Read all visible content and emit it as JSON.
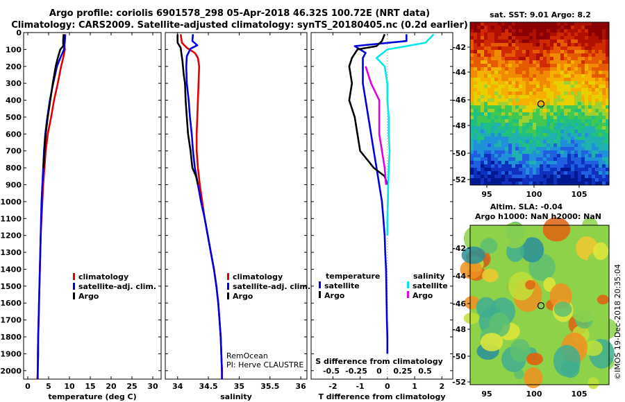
{
  "header": {
    "title_line1": "Argo profile: coriolis 6901578_298 05-Apr-2018 46.32S 100.72E (NRT data)",
    "title_line2": "Climatology: CARS2009. Satellite-adjusted climatology: synTS_20180405.nc (0.2d earlier)"
  },
  "colors": {
    "climatology": "#e00000",
    "satellite": "#0000e0",
    "argo": "#000000",
    "sat_salinity": "#00e8e8",
    "argo_salinity": "#e000e0"
  },
  "depth_ticks": [
    "0",
    "100",
    "200",
    "300",
    "400",
    "500",
    "600",
    "700",
    "800",
    "900",
    "1000",
    "1100",
    "1200",
    "1300",
    "1400",
    "1500",
    "1600",
    "1700",
    "1800",
    "1900",
    "2000"
  ],
  "chart_data": [
    {
      "type": "line",
      "xlabel": "temperature (deg C)",
      "ylabel": "depth",
      "xlim": [
        -1,
        32
      ],
      "ylim": [
        2050,
        0
      ],
      "x_ticks": [
        "0",
        "5",
        "10",
        "15",
        "20",
        "25",
        "30"
      ],
      "legend": [
        "climatology",
        "satellite-adj. clim.",
        "Argo"
      ],
      "series": [
        {
          "name": "climatology",
          "color": "#e00000",
          "points": [
            [
              8.7,
              10
            ],
            [
              8.7,
              50
            ],
            [
              8.9,
              100
            ],
            [
              8.5,
              150
            ],
            [
              8.0,
              200
            ],
            [
              7.2,
              300
            ],
            [
              6.3,
              400
            ],
            [
              5.6,
              500
            ],
            [
              4.8,
              600
            ],
            [
              4.3,
              700
            ],
            [
              4.0,
              800
            ],
            [
              3.7,
              900
            ],
            [
              3.5,
              1000
            ],
            [
              3.3,
              1100
            ],
            [
              3.1,
              1200
            ],
            [
              3.0,
              1300
            ],
            [
              2.9,
              1400
            ],
            [
              2.8,
              1500
            ],
            [
              2.7,
              1600
            ],
            [
              2.6,
              1700
            ],
            [
              2.5,
              1800
            ],
            [
              2.4,
              1900
            ],
            [
              2.4,
              2000
            ],
            [
              2.3,
              2050
            ]
          ]
        },
        {
          "name": "satellite-adj. clim.",
          "color": "#0000e0",
          "points": [
            [
              9.0,
              10
            ],
            [
              8.9,
              50
            ],
            [
              8.7,
              100
            ],
            [
              7.8,
              150
            ],
            [
              7.0,
              200
            ],
            [
              6.1,
              300
            ],
            [
              5.3,
              400
            ],
            [
              4.7,
              500
            ],
            [
              4.2,
              600
            ],
            [
              3.9,
              700
            ],
            [
              3.7,
              800
            ],
            [
              3.5,
              900
            ],
            [
              3.3,
              1000
            ],
            [
              3.2,
              1100
            ],
            [
              3.1,
              1200
            ],
            [
              3.0,
              1300
            ],
            [
              2.9,
              1400
            ],
            [
              2.8,
              1500
            ],
            [
              2.7,
              1600
            ],
            [
              2.6,
              1700
            ],
            [
              2.5,
              1800
            ],
            [
              2.5,
              1900
            ],
            [
              2.4,
              2000
            ],
            [
              2.4,
              2050
            ]
          ]
        },
        {
          "name": "Argo",
          "color": "#000000",
          "points": [
            [
              8.6,
              10
            ],
            [
              8.5,
              50
            ],
            [
              8.5,
              80
            ],
            [
              7.8,
              100
            ],
            [
              7.2,
              150
            ],
            [
              6.7,
              200
            ],
            [
              6.0,
              300
            ],
            [
              5.4,
              400
            ],
            [
              4.8,
              500
            ],
            [
              4.3,
              600
            ],
            [
              4.0,
              700
            ],
            [
              3.8,
              800
            ]
          ]
        }
      ]
    },
    {
      "type": "line",
      "xlabel": "salinity",
      "ylabel": "depth",
      "xlim": [
        33.8,
        36.1
      ],
      "ylim": [
        2050,
        0
      ],
      "x_ticks": [
        "34",
        "34.5",
        "35",
        "35.5",
        "36"
      ],
      "legend": [
        "climatology",
        "satellite-adj. clim.",
        "Argo"
      ],
      "annotation": [
        "RemOcean",
        "PI: Herve CLAUSTRE"
      ],
      "series": [
        {
          "name": "climatology",
          "color": "#e00000",
          "points": [
            [
              34.05,
              10
            ],
            [
              34.07,
              60
            ],
            [
              34.15,
              90
            ],
            [
              34.28,
              120
            ],
            [
              34.33,
              150
            ],
            [
              34.35,
              200
            ],
            [
              34.34,
              300
            ],
            [
              34.33,
              400
            ],
            [
              34.32,
              500
            ],
            [
              34.31,
              600
            ],
            [
              34.31,
              700
            ],
            [
              34.33,
              800
            ],
            [
              34.36,
              900
            ],
            [
              34.4,
              1000
            ],
            [
              34.44,
              1100
            ],
            [
              34.49,
              1200
            ],
            [
              34.54,
              1300
            ],
            [
              34.59,
              1400
            ],
            [
              34.63,
              1500
            ],
            [
              34.66,
              1600
            ],
            [
              34.68,
              1700
            ],
            [
              34.7,
              1800
            ],
            [
              34.71,
              1900
            ],
            [
              34.72,
              2000
            ],
            [
              34.72,
              2050
            ]
          ]
        },
        {
          "name": "satellite-adj. clim.",
          "color": "#0000e0",
          "points": [
            [
              34.25,
              10
            ],
            [
              34.24,
              50
            ],
            [
              34.32,
              75
            ],
            [
              34.21,
              95
            ],
            [
              34.15,
              140
            ],
            [
              34.14,
              200
            ],
            [
              34.15,
              300
            ],
            [
              34.18,
              400
            ],
            [
              34.2,
              500
            ],
            [
              34.23,
              600
            ],
            [
              34.25,
              700
            ],
            [
              34.28,
              800
            ],
            [
              34.33,
              900
            ],
            [
              34.38,
              1000
            ],
            [
              34.44,
              1100
            ],
            [
              34.49,
              1200
            ],
            [
              34.54,
              1300
            ],
            [
              34.59,
              1400
            ],
            [
              34.63,
              1500
            ],
            [
              34.66,
              1600
            ],
            [
              34.68,
              1700
            ],
            [
              34.7,
              1800
            ],
            [
              34.71,
              1900
            ],
            [
              34.72,
              2000
            ],
            [
              34.72,
              2050
            ]
          ]
        },
        {
          "name": "Argo",
          "color": "#000000",
          "points": [
            [
              34.0,
              10
            ],
            [
              34.0,
              60
            ],
            [
              34.05,
              90
            ],
            [
              34.06,
              120
            ],
            [
              34.08,
              170
            ],
            [
              34.1,
              250
            ],
            [
              34.12,
              300
            ],
            [
              34.13,
              400
            ],
            [
              34.15,
              500
            ],
            [
              34.17,
              600
            ],
            [
              34.21,
              700
            ],
            [
              34.24,
              800
            ],
            [
              34.3,
              850
            ],
            [
              34.33,
              900
            ]
          ]
        }
      ]
    },
    {
      "type": "line",
      "xlabel": "T difference from climatology",
      "ylabel": "depth",
      "xlim": [
        -2.8,
        2.4
      ],
      "ylim": [
        2050,
        0
      ],
      "x_ticks": [
        "-2",
        "-1",
        "0",
        "1",
        "2"
      ],
      "top_xlabel": "S difference from climatology",
      "top_x_ticks": [
        "-0.5",
        "-0.25",
        "0",
        "0.25",
        "0.5"
      ],
      "legend": [
        "temperature",
        "satellite",
        "Argo",
        "salinity",
        "satellite",
        "Argo"
      ],
      "series": [
        {
          "name": "temperature satellite",
          "color": "#0000e0",
          "points": [
            [
              0.7,
              10
            ],
            [
              0.7,
              50
            ],
            [
              -1.2,
              80
            ],
            [
              -1.0,
              100
            ],
            [
              -0.8,
              120
            ],
            [
              -0.9,
              150
            ],
            [
              -0.9,
              200
            ],
            [
              -0.9,
              300
            ],
            [
              -0.8,
              400
            ],
            [
              -0.7,
              500
            ],
            [
              -0.6,
              600
            ],
            [
              -0.5,
              700
            ],
            [
              -0.4,
              800
            ],
            [
              -0.3,
              900
            ],
            [
              -0.2,
              1000
            ],
            [
              -0.15,
              1100
            ],
            [
              -0.1,
              1200
            ],
            [
              -0.08,
              1300
            ],
            [
              -0.05,
              1400
            ],
            [
              -0.04,
              1500
            ],
            [
              -0.03,
              1600
            ],
            [
              -0.02,
              1700
            ],
            [
              0.0,
              1800
            ],
            [
              0.0,
              1900
            ]
          ]
        },
        {
          "name": "temperature Argo",
          "color": "#000000",
          "points": [
            [
              -0.1,
              10
            ],
            [
              -0.2,
              50
            ],
            [
              -0.4,
              80
            ],
            [
              -1.1,
              100
            ],
            [
              -1.3,
              150
            ],
            [
              -1.4,
              200
            ],
            [
              -1.3,
              300
            ],
            [
              -1.4,
              400
            ],
            [
              -1.2,
              500
            ],
            [
              -1.1,
              600
            ],
            [
              -1.0,
              700
            ],
            [
              -0.5,
              800
            ],
            [
              -0.1,
              850
            ],
            [
              0.0,
              900
            ]
          ]
        },
        {
          "name": "salinity satellite",
          "color": "#00e8e8",
          "points": [
            [
              1.7,
              10
            ],
            [
              1.4,
              60
            ],
            [
              0.0,
              100
            ],
            [
              -0.4,
              150
            ],
            [
              -0.1,
              200
            ],
            [
              0.0,
              300
            ],
            [
              0.0,
              400
            ],
            [
              0.05,
              500
            ],
            [
              0.05,
              600
            ],
            [
              0.08,
              700
            ],
            [
              0.05,
              800
            ],
            [
              0.03,
              900
            ],
            [
              0.02,
              1000
            ],
            [
              0.0,
              1100
            ],
            [
              0.0,
              1200
            ]
          ]
        },
        {
          "name": "salinity Argo",
          "color": "#e000e0",
          "points": [
            [
              -0.8,
              200
            ],
            [
              -0.6,
              300
            ],
            [
              -0.3,
              400
            ],
            [
              -0.3,
              500
            ],
            [
              -0.3,
              600
            ],
            [
              -0.2,
              700
            ],
            [
              -0.1,
              800
            ],
            [
              -0.05,
              900
            ]
          ]
        }
      ]
    }
  ],
  "maps": {
    "sst": {
      "title": "sat. SST: 9.01  Argo: 8.2",
      "lat_ticks": [
        "-42",
        "-44",
        "-46",
        "-48",
        "-50",
        "-52"
      ],
      "lon_ticks": [
        "95",
        "100",
        "105"
      ]
    },
    "sla": {
      "title1": "Altim. SLA: -0.04",
      "title2": "Argo h1000: NaN h2000: NaN",
      "lat_ticks": [
        "-42",
        "-44",
        "-46",
        "-48",
        "-50",
        "-52"
      ],
      "lon_ticks": [
        "95",
        "100",
        "105"
      ]
    }
  },
  "footer": {
    "stamp": "©IMOS 19-Dec-2018 20:35:04"
  }
}
